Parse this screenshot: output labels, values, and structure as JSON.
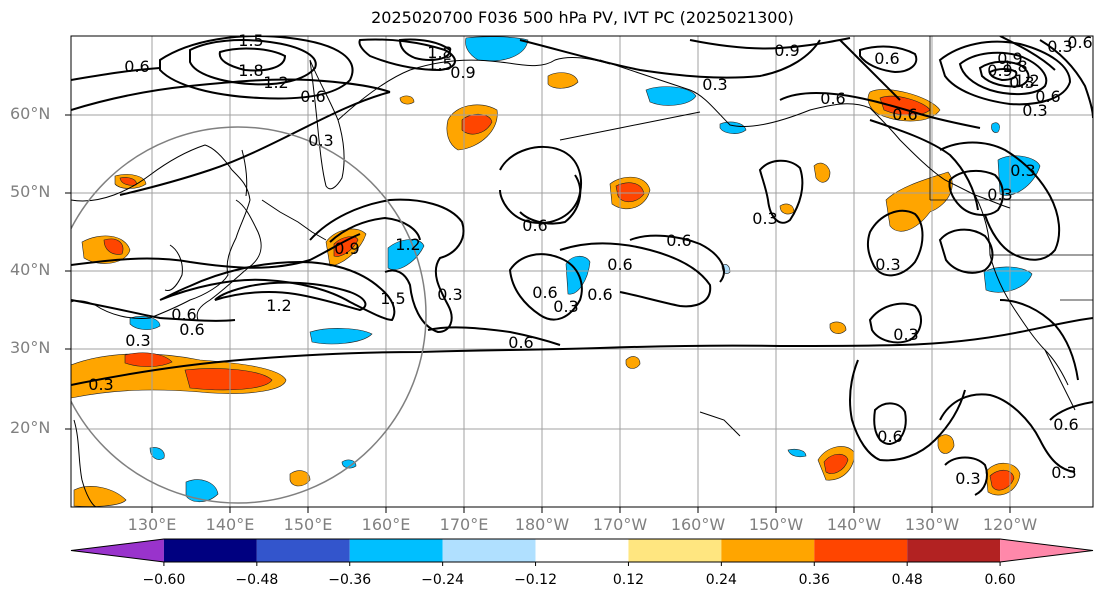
{
  "title": "2025020700 F036 500 hPa PV, IVT PC (2025021300)",
  "lat_labels": [
    "60°N",
    "50°N",
    "40°N",
    "30°N",
    "20°N"
  ],
  "lon_labels": [
    "130°E",
    "140°E",
    "150°E",
    "160°E",
    "170°E",
    "180°W",
    "170°W",
    "160°W",
    "150°W",
    "140°W",
    "130°W",
    "120°W"
  ],
  "contour_labels": [
    "1.5",
    "1.8",
    "1.2",
    "0.6",
    "0.3",
    "1.8",
    "1.5",
    "0.9",
    "0.9",
    "0.3",
    "0.6",
    "0.6",
    "0.6",
    "0.9",
    "0.6",
    "1.2",
    "1.5",
    "0.3",
    "0.6",
    "0.3",
    "0.6",
    "0.3",
    "0.6",
    "0.3",
    "0.3",
    "0.3",
    "0.6",
    "0.3",
    "0.6",
    "0.3",
    "0.3",
    "0.6",
    "0.3",
    "0.6",
    "0.3",
    "1.2",
    "0.9",
    "0.6",
    "0.3",
    "0.9",
    "0.3",
    "0.6",
    "0.6",
    "0.6",
    "0.3",
    "0.6",
    "1.2",
    "1.8"
  ],
  "colorbar": {
    "colors": [
      "#9933cc",
      "#000080",
      "#3355cc",
      "#00bfff",
      "#b0e0ff",
      "#ffffff",
      "#ffe680",
      "#ffa500",
      "#ff4500",
      "#b22222",
      "#ff88aa"
    ],
    "ticks": [
      "−0.60",
      "−0.48",
      "−0.36",
      "−0.24",
      "−0.12",
      "0.12",
      "0.24",
      "0.36",
      "0.48",
      "0.60"
    ]
  },
  "colors": {
    "contour": "#000000",
    "grid": "#a0a0a0",
    "coast": "#000000",
    "circle": "#808080"
  }
}
